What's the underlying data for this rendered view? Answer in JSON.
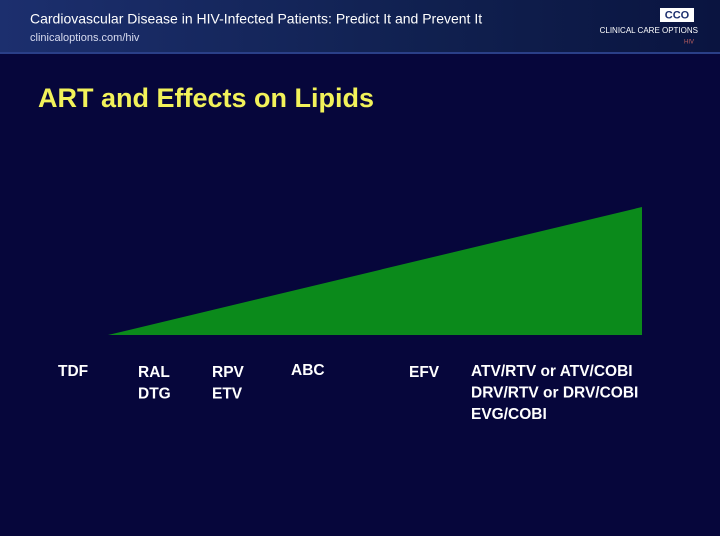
{
  "header": {
    "title": "Cardiovascular Disease in HIV-Infected Patients: Predict It and Prevent It",
    "url": "clinicaloptions.com/hiv",
    "logo": {
      "mark": "CCO",
      "name": "CLINICAL CARE OPTIONS",
      "sub": "HIV"
    }
  },
  "slide": {
    "title": "ART and Effects on Lipids",
    "drugs": [
      [
        "TDF"
      ],
      [
        "RAL",
        "DTG"
      ],
      [
        "RPV",
        "ETV"
      ],
      [
        "ABC"
      ],
      [
        "EFV"
      ],
      [
        "ATV/RTV or ATV/COBI",
        "DRV/RTV or DRV/COBI",
        "EVG/COBI"
      ]
    ]
  }
}
